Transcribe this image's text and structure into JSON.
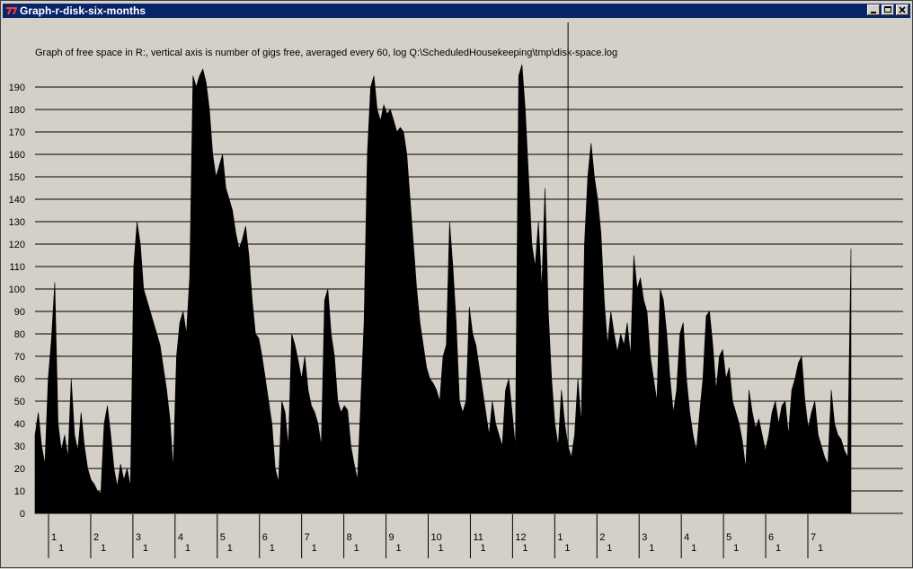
{
  "window": {
    "title": "Graph-r-disk-six-months",
    "icon": "app-icon"
  },
  "title_buttons": [
    "minimize-icon",
    "maximize-icon",
    "close-icon"
  ],
  "chart_data": {
    "type": "area",
    "title": "Graph of free space in R:, vertical axis is number of gigs free, averaged every 60, log Q:\\ScheduledHousekeeping\\tmp\\disk-space.log",
    "xlabel": "",
    "ylabel": "",
    "ylim": [
      0,
      190
    ],
    "yticks": [
      0,
      10,
      20,
      30,
      40,
      50,
      60,
      70,
      80,
      90,
      100,
      110,
      120,
      130,
      140,
      150,
      160,
      170,
      180,
      190
    ],
    "grid": true,
    "fill_color": "#000000",
    "grid_color": "#000000",
    "x_ticks": [
      {
        "label": "1",
        "sub": "1"
      },
      {
        "label": "2",
        "sub": "1"
      },
      {
        "label": "3",
        "sub": "1"
      },
      {
        "label": "4",
        "sub": "1"
      },
      {
        "label": "5",
        "sub": "1"
      },
      {
        "label": "6",
        "sub": "1"
      },
      {
        "label": "7",
        "sub": "1"
      },
      {
        "label": "8",
        "sub": "1"
      },
      {
        "label": "9",
        "sub": "1"
      },
      {
        "label": "10",
        "sub": "1"
      },
      {
        "label": "11",
        "sub": "1"
      },
      {
        "label": "12",
        "sub": "1"
      },
      {
        "label": "1",
        "sub": "1"
      },
      {
        "label": "2",
        "sub": "1"
      },
      {
        "label": "3",
        "sub": "1"
      },
      {
        "label": "4",
        "sub": "1"
      },
      {
        "label": "5",
        "sub": "1"
      },
      {
        "label": "6",
        "sub": "1"
      },
      {
        "label": "7",
        "sub": "1"
      }
    ],
    "values": [
      35,
      45,
      30,
      22,
      60,
      78,
      103,
      40,
      28,
      35,
      25,
      60,
      35,
      28,
      45,
      30,
      20,
      15,
      13,
      10,
      9,
      40,
      48,
      35,
      20,
      12,
      22,
      15,
      20,
      12,
      110,
      130,
      120,
      100,
      95,
      90,
      85,
      80,
      75,
      65,
      55,
      42,
      20,
      70,
      85,
      90,
      80,
      105,
      195,
      190,
      195,
      198,
      192,
      180,
      160,
      150,
      155,
      160,
      145,
      140,
      135,
      125,
      118,
      122,
      128,
      115,
      95,
      80,
      78,
      70,
      60,
      50,
      40,
      20,
      14,
      50,
      45,
      30,
      80,
      75,
      68,
      60,
      70,
      55,
      48,
      45,
      40,
      30,
      95,
      100,
      80,
      70,
      50,
      45,
      48,
      46,
      30,
      22,
      15,
      50,
      85,
      160,
      190,
      195,
      180,
      175,
      182,
      178,
      180,
      175,
      170,
      172,
      170,
      160,
      140,
      120,
      100,
      85,
      75,
      65,
      60,
      58,
      55,
      50,
      70,
      75,
      130,
      110,
      85,
      50,
      45,
      50,
      92,
      80,
      75,
      65,
      55,
      45,
      35,
      50,
      40,
      35,
      30,
      55,
      60,
      45,
      30,
      195,
      200,
      180,
      150,
      120,
      110,
      130,
      100,
      145,
      90,
      60,
      40,
      30,
      55,
      40,
      30,
      25,
      35,
      60,
      40,
      120,
      150,
      165,
      150,
      140,
      125,
      95,
      75,
      90,
      80,
      72,
      80,
      75,
      85,
      70,
      115,
      100,
      105,
      95,
      90,
      70,
      60,
      50,
      100,
      95,
      80,
      60,
      45,
      55,
      80,
      85,
      60,
      45,
      35,
      28,
      45,
      60,
      88,
      90,
      75,
      55,
      70,
      73,
      60,
      65,
      50,
      45,
      40,
      32,
      20,
      55,
      45,
      38,
      42,
      35,
      28,
      35,
      45,
      50,
      40,
      48,
      50,
      35,
      55,
      60,
      67,
      70,
      50,
      38,
      45,
      50,
      35,
      30,
      25,
      22,
      55,
      40,
      35,
      33,
      28,
      25,
      118
    ],
    "annotations": [
      {
        "type": "vline",
        "at_index": 162
      }
    ]
  }
}
